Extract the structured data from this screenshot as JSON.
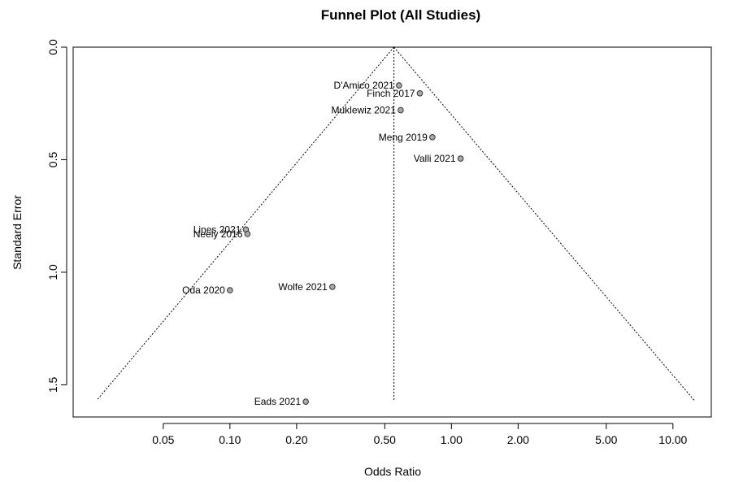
{
  "chart_data": {
    "type": "scatter",
    "title": "Funnel Plot (All Studies)",
    "xlabel": "Odds Ratio",
    "ylabel": "Standard Error",
    "x_scale": "log",
    "y_reversed": true,
    "xlim": [
      0.0196,
      14.9
    ],
    "ylim": [
      1.643,
      0.0
    ],
    "x_ticks": [
      {
        "value": 0.05,
        "label": "0.05"
      },
      {
        "value": 0.1,
        "label": "0.10"
      },
      {
        "value": 0.2,
        "label": "0.20"
      },
      {
        "value": 0.5,
        "label": "0.50"
      },
      {
        "value": 1.0,
        "label": "1.00"
      },
      {
        "value": 2.0,
        "label": "2.00"
      },
      {
        "value": 5.0,
        "label": "5.00"
      },
      {
        "value": 10.0,
        "label": "10.00"
      }
    ],
    "y_ticks": [
      {
        "value": 0.0,
        "label": "0.0"
      },
      {
        "value": 0.5,
        "label": "0.5"
      },
      {
        "value": 1.0,
        "label": "1.0"
      },
      {
        "value": 1.5,
        "label": "1.5"
      }
    ],
    "pooled_estimate": 0.55,
    "funnel": {
      "apex_se": 0.0,
      "base_se": 1.57,
      "left_or": 0.025,
      "right_or": 12.5
    },
    "points": [
      {
        "label": "D'Amico 2021",
        "x": 0.58,
        "y": 0.17
      },
      {
        "label": "Finch 2017",
        "x": 0.72,
        "y": 0.205
      },
      {
        "label": "Muklewiz 2021",
        "x": 0.59,
        "y": 0.28
      },
      {
        "label": "Meng 2019",
        "x": 0.82,
        "y": 0.4
      },
      {
        "label": "Valli 2021",
        "x": 1.1,
        "y": 0.495
      },
      {
        "label": "Lines 2021",
        "x": 0.118,
        "y": 0.81
      },
      {
        "label": "Neely 2016",
        "x": 0.12,
        "y": 0.83
      },
      {
        "label": "Oda 2020",
        "x": 0.1,
        "y": 1.08
      },
      {
        "label": "Wolfe 2021",
        "x": 0.29,
        "y": 1.065
      },
      {
        "label": "Eads 2021",
        "x": 0.22,
        "y": 1.575
      }
    ],
    "grid": false,
    "legend": "none"
  }
}
